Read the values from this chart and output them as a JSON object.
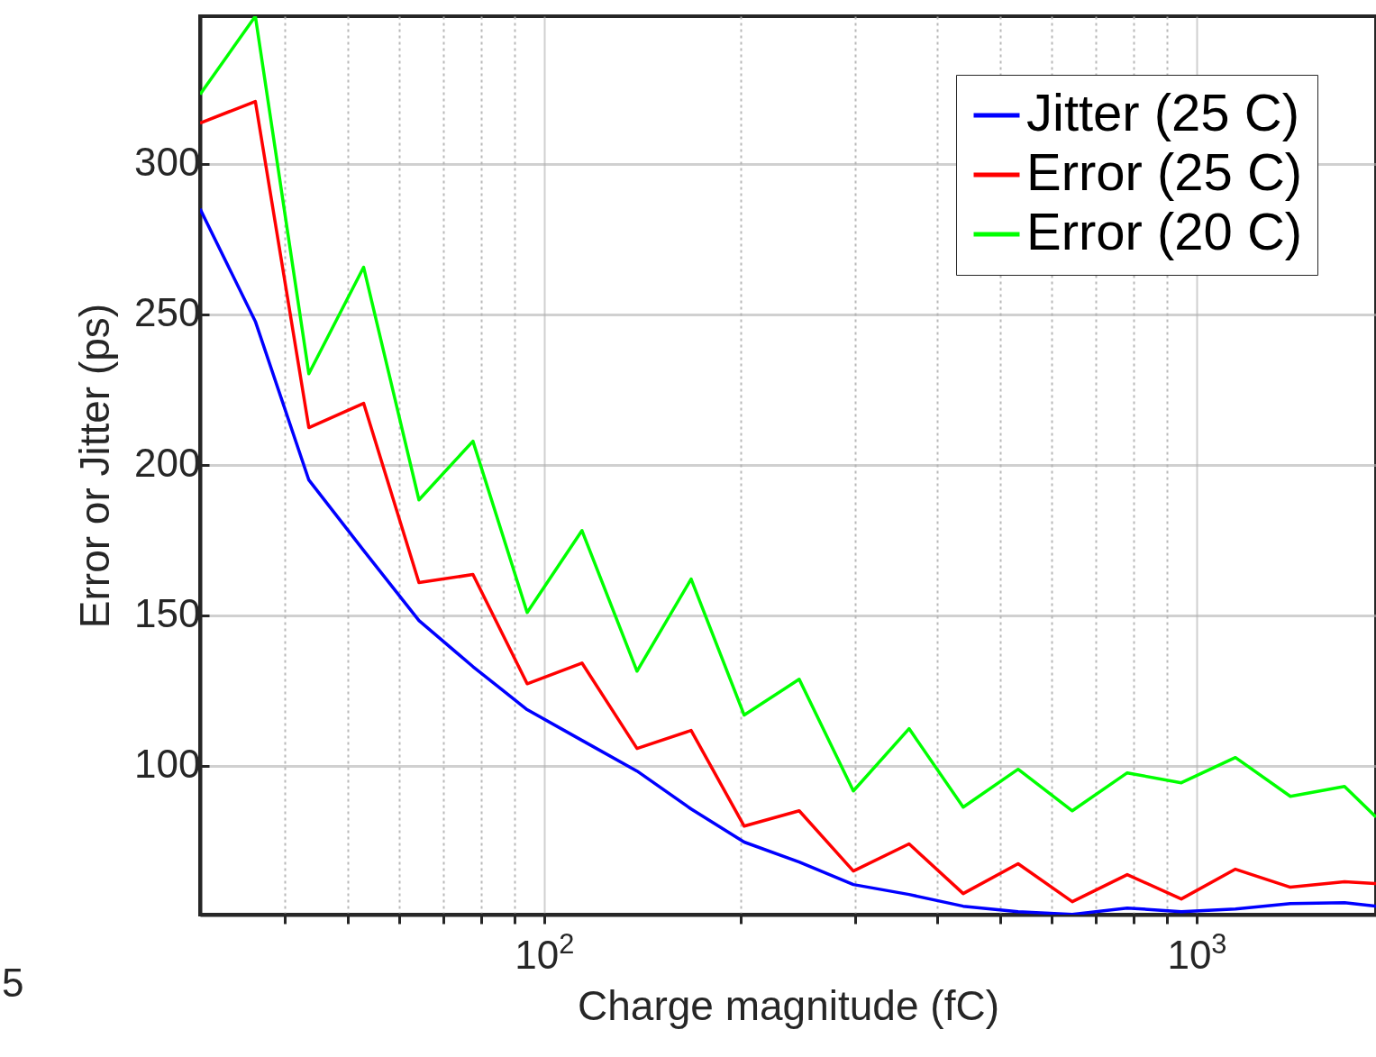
{
  "chart_data": {
    "type": "line",
    "xlabel": "Charge magnitude (fC)",
    "ylabel": "Error or Jitter (ps)",
    "x": [
      29.7,
      36.1,
      43.6,
      52.9,
      64.3,
      77.8,
      94.2,
      114.3,
      138.8,
      168,
      202.6,
      246,
      297.8,
      362.5,
      438.8,
      532.6,
      644.8,
      782.8,
      947.3,
      1146.6,
      1392,
      1685,
      1883
    ],
    "series": [
      {
        "name": "Jitter (25 C)",
        "color": "#0000ff",
        "values": [
          285,
          247.6,
          194.9,
          171.5,
          148.2,
          132.9,
          118.6,
          108.4,
          98.2,
          85.6,
          74.6,
          68,
          60.5,
          57.2,
          53.3,
          51.5,
          50.6,
          52.7,
          51.5,
          52.4,
          54.2,
          54.5,
          53.3
        ]
      },
      {
        "name": "Error (25 C)",
        "color": "#ff0000",
        "values": [
          313.5,
          320.7,
          212.3,
          220.4,
          160.8,
          163.5,
          127.2,
          134.1,
          105.7,
          111.7,
          79.9,
          85,
          65,
          74,
          57.5,
          67.4,
          54.8,
          63.8,
          55.7,
          65.6,
          59.6,
          61.4,
          60.8
        ]
      },
      {
        "name": "Error (20 C)",
        "color": "#00ff00",
        "values": [
          323,
          349,
          230.2,
          265.6,
          188.3,
          207.8,
          150.9,
          178.1,
          131.4,
          162,
          116.8,
          128.7,
          91.6,
          112.3,
          86.2,
          98.8,
          85,
          97.6,
          94.3,
          102.7,
          89.8,
          93.1,
          82.9
        ]
      }
    ],
    "log": "x",
    "xlim": [
      29.7,
      1883
    ],
    "xticks": [
      {
        "value": 40,
        "label": null
      },
      {
        "value": 50,
        "label": null
      },
      {
        "value": 60,
        "label": null
      },
      {
        "value": 70,
        "label": null
      },
      {
        "value": 80,
        "label": null
      },
      {
        "value": 90,
        "label": null
      },
      {
        "value": 100,
        "label": "10$^{2}$"
      },
      {
        "value": 200,
        "label": null
      },
      {
        "value": 300,
        "label": null
      },
      {
        "value": 400,
        "label": null
      },
      {
        "value": 500,
        "label": null
      },
      {
        "value": 600,
        "label": null
      },
      {
        "value": 700,
        "label": null
      },
      {
        "value": 800,
        "label": null
      },
      {
        "value": 900,
        "label": null
      },
      {
        "value": 1000,
        "label": "10$^{3}$"
      }
    ],
    "ylim": [
      50.5,
      349
    ],
    "yticks": [
      100,
      150,
      200,
      250,
      300
    ],
    "grid": true,
    "legend": "top right",
    "line_style": "solid",
    "annotations": [
      "5"
    ]
  }
}
